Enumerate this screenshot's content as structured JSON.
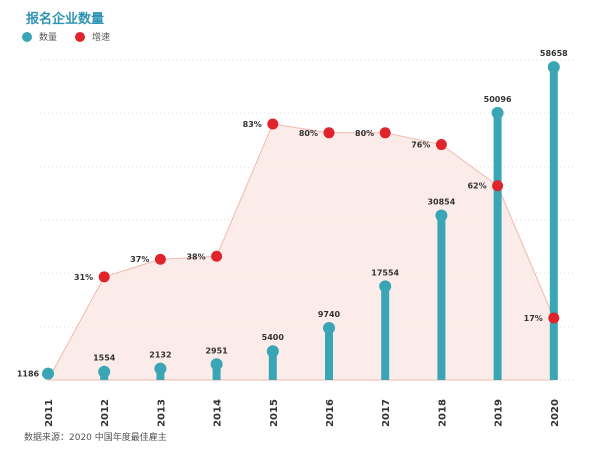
{
  "title": "报名企业数量",
  "source": "数据来源：2020 中国年度最佳雇主",
  "colors": {
    "count": "#3aa5b4",
    "growth": "#e0242b",
    "area_fill": "#fbe9e5",
    "area_stroke": "#f0b9b0",
    "title": "#2f93b3"
  },
  "chart_data": {
    "type": "bar",
    "title": "报名企业数量",
    "categories": [
      "2011",
      "2012",
      "2013",
      "2014",
      "2015",
      "2016",
      "2017",
      "2018",
      "2019",
      "2020"
    ],
    "series": [
      {
        "name": "数量",
        "type": "bar",
        "values": [
          1186,
          1554,
          2132,
          2951,
          5400,
          9740,
          17554,
          30854,
          50096,
          58658
        ],
        "labels": [
          "1186",
          "1554",
          "2132",
          "2951",
          "5400",
          "9740",
          "17554",
          "30854",
          "50096",
          "58658"
        ]
      },
      {
        "name": "增速",
        "type": "area",
        "values": [
          null,
          31,
          37,
          38,
          83,
          80,
          80,
          76,
          62,
          17
        ],
        "labels": [
          "",
          "31%",
          "37%",
          "38%",
          "83%",
          "80%",
          "80%",
          "76%",
          "62%",
          "17%"
        ]
      }
    ],
    "ylim_count": [
      0,
      60000
    ],
    "ylim_growth": [
      0,
      100
    ],
    "grid": true,
    "legend": "top-left"
  }
}
